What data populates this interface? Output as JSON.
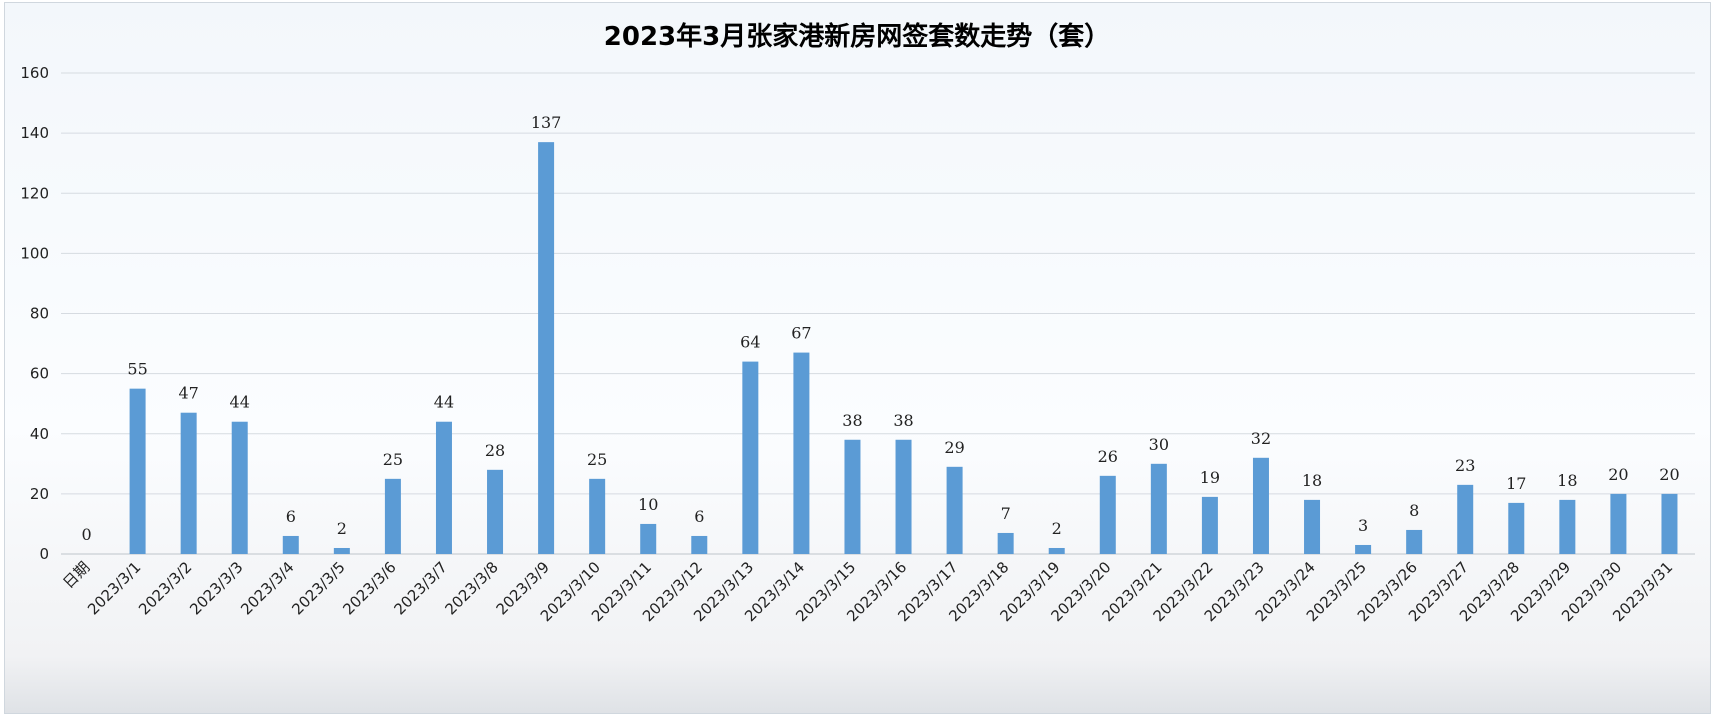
{
  "chart_data": {
    "type": "bar",
    "title": "2023年3月张家港新房网签套数走势（套）",
    "xlabel": "",
    "ylabel": "",
    "ylim": [
      0,
      160
    ],
    "yticks": [
      0,
      20,
      40,
      60,
      80,
      100,
      120,
      140,
      160
    ],
    "grid": true,
    "legend": "none",
    "bar_color": "#5b9bd5",
    "categories": [
      "日期",
      "2023/3/1",
      "2023/3/2",
      "2023/3/3",
      "2023/3/4",
      "2023/3/5",
      "2023/3/6",
      "2023/3/7",
      "2023/3/8",
      "2023/3/9",
      "2023/3/10",
      "2023/3/11",
      "2023/3/12",
      "2023/3/13",
      "2023/3/14",
      "2023/3/15",
      "2023/3/16",
      "2023/3/17",
      "2023/3/18",
      "2023/3/19",
      "2023/3/20",
      "2023/3/21",
      "2023/3/22",
      "2023/3/23",
      "2023/3/24",
      "2023/3/25",
      "2023/3/26",
      "2023/3/27",
      "2023/3/28",
      "2023/3/29",
      "2023/3/30",
      "2023/3/31"
    ],
    "values": [
      0,
      55,
      47,
      44,
      6,
      2,
      25,
      44,
      28,
      137,
      25,
      10,
      6,
      64,
      67,
      38,
      38,
      29,
      7,
      2,
      26,
      30,
      19,
      32,
      18,
      3,
      8,
      23,
      17,
      18,
      20,
      20
    ]
  }
}
